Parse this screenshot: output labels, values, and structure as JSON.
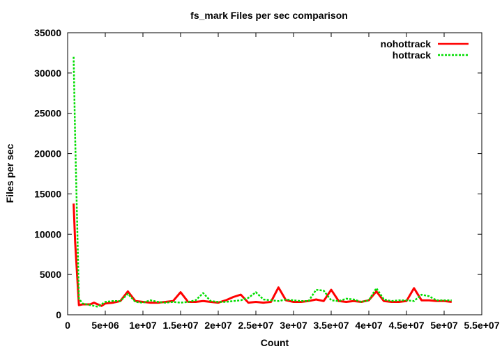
{
  "chart_data": {
    "type": "line",
    "title": "fs_mark Files per sec comparison",
    "xlabel": "Count",
    "ylabel": "Files per sec",
    "xlim": [
      0,
      55000000
    ],
    "ylim": [
      0,
      35000
    ],
    "grid": false,
    "legend_position": "top-right",
    "xticks": [
      {
        "value": 0,
        "label": "0"
      },
      {
        "value": 5000000,
        "label": "5e+06"
      },
      {
        "value": 10000000,
        "label": "1e+07"
      },
      {
        "value": 15000000,
        "label": "1.5e+07"
      },
      {
        "value": 20000000,
        "label": "2e+07"
      },
      {
        "value": 25000000,
        "label": "2.5e+07"
      },
      {
        "value": 30000000,
        "label": "3e+07"
      },
      {
        "value": 35000000,
        "label": "3.5e+07"
      },
      {
        "value": 40000000,
        "label": "4e+07"
      },
      {
        "value": 45000000,
        "label": "4.5e+07"
      },
      {
        "value": 50000000,
        "label": "5e+07"
      },
      {
        "value": 55000000,
        "label": "5.5e+07"
      }
    ],
    "yticks": [
      {
        "value": 0,
        "label": "0"
      },
      {
        "value": 5000,
        "label": "5000"
      },
      {
        "value": 10000,
        "label": "10000"
      },
      {
        "value": 15000,
        "label": "15000"
      },
      {
        "value": 20000,
        "label": "20000"
      },
      {
        "value": 25000,
        "label": "25000"
      },
      {
        "value": 30000,
        "label": "30000"
      },
      {
        "value": 35000,
        "label": "35000"
      }
    ],
    "series": [
      {
        "name": "nohottrack",
        "color": "#ff0000",
        "dash": "solid",
        "x": [
          800000,
          1000000,
          1500000,
          2000000,
          3000000,
          3500000,
          4000000,
          4500000,
          5000000,
          6000000,
          7000000,
          8000000,
          9000000,
          10000000,
          11000000,
          12000000,
          13000000,
          14000000,
          15000000,
          16000000,
          17000000,
          18000000,
          19000000,
          20000000,
          21000000,
          22000000,
          23000000,
          24000000,
          25000000,
          26000000,
          27000000,
          28000000,
          29000000,
          30000000,
          31000000,
          32000000,
          33000000,
          34000000,
          35000000,
          36000000,
          37000000,
          38000000,
          39000000,
          40000000,
          41000000,
          42000000,
          43000000,
          44000000,
          45000000,
          46000000,
          47000000,
          48000000,
          49000000,
          50000000,
          51000000
        ],
        "values": [
          13800,
          9000,
          1200,
          1300,
          1300,
          1500,
          1300,
          1100,
          1400,
          1500,
          1700,
          2900,
          1700,
          1600,
          1500,
          1500,
          1600,
          1700,
          2800,
          1600,
          1600,
          1700,
          1600,
          1500,
          1800,
          2200,
          2500,
          1500,
          1600,
          1500,
          1600,
          3400,
          1800,
          1600,
          1600,
          1700,
          1900,
          1700,
          3100,
          1700,
          1600,
          1700,
          1600,
          1800,
          2900,
          1700,
          1600,
          1600,
          1700,
          3300,
          1800,
          1800,
          1700,
          1700,
          1600
        ]
      },
      {
        "name": "hottrack",
        "color": "#00dd00",
        "dash": "dashed",
        "x": [
          800000,
          1000000,
          1500000,
          2000000,
          3000000,
          4000000,
          4500000,
          5000000,
          6000000,
          7000000,
          8000000,
          9000000,
          10000000,
          11000000,
          12000000,
          13000000,
          14000000,
          15000000,
          16000000,
          17000000,
          18000000,
          19000000,
          20000000,
          21000000,
          22000000,
          23000000,
          24000000,
          25000000,
          26000000,
          27000000,
          28000000,
          29000000,
          30000000,
          31000000,
          32000000,
          33000000,
          34000000,
          35000000,
          36000000,
          37000000,
          38000000,
          39000000,
          40000000,
          41000000,
          42000000,
          43000000,
          44000000,
          45000000,
          46000000,
          47000000,
          48000000,
          49000000,
          50000000,
          51000000
        ],
        "values": [
          32000,
          22000,
          2000,
          1400,
          1200,
          1000,
          1300,
          1600,
          1700,
          1700,
          2600,
          1600,
          1500,
          1800,
          1600,
          1500,
          1600,
          1500,
          1600,
          1800,
          2700,
          1700,
          1600,
          1600,
          1700,
          1800,
          2100,
          2800,
          1900,
          1800,
          1700,
          1900,
          1800,
          1700,
          1700,
          3100,
          3000,
          1800,
          1700,
          2000,
          1900,
          1600,
          1800,
          3300,
          1900,
          1700,
          1800,
          1800,
          1700,
          2500,
          2300,
          1800,
          1800,
          1800
        ]
      }
    ]
  }
}
